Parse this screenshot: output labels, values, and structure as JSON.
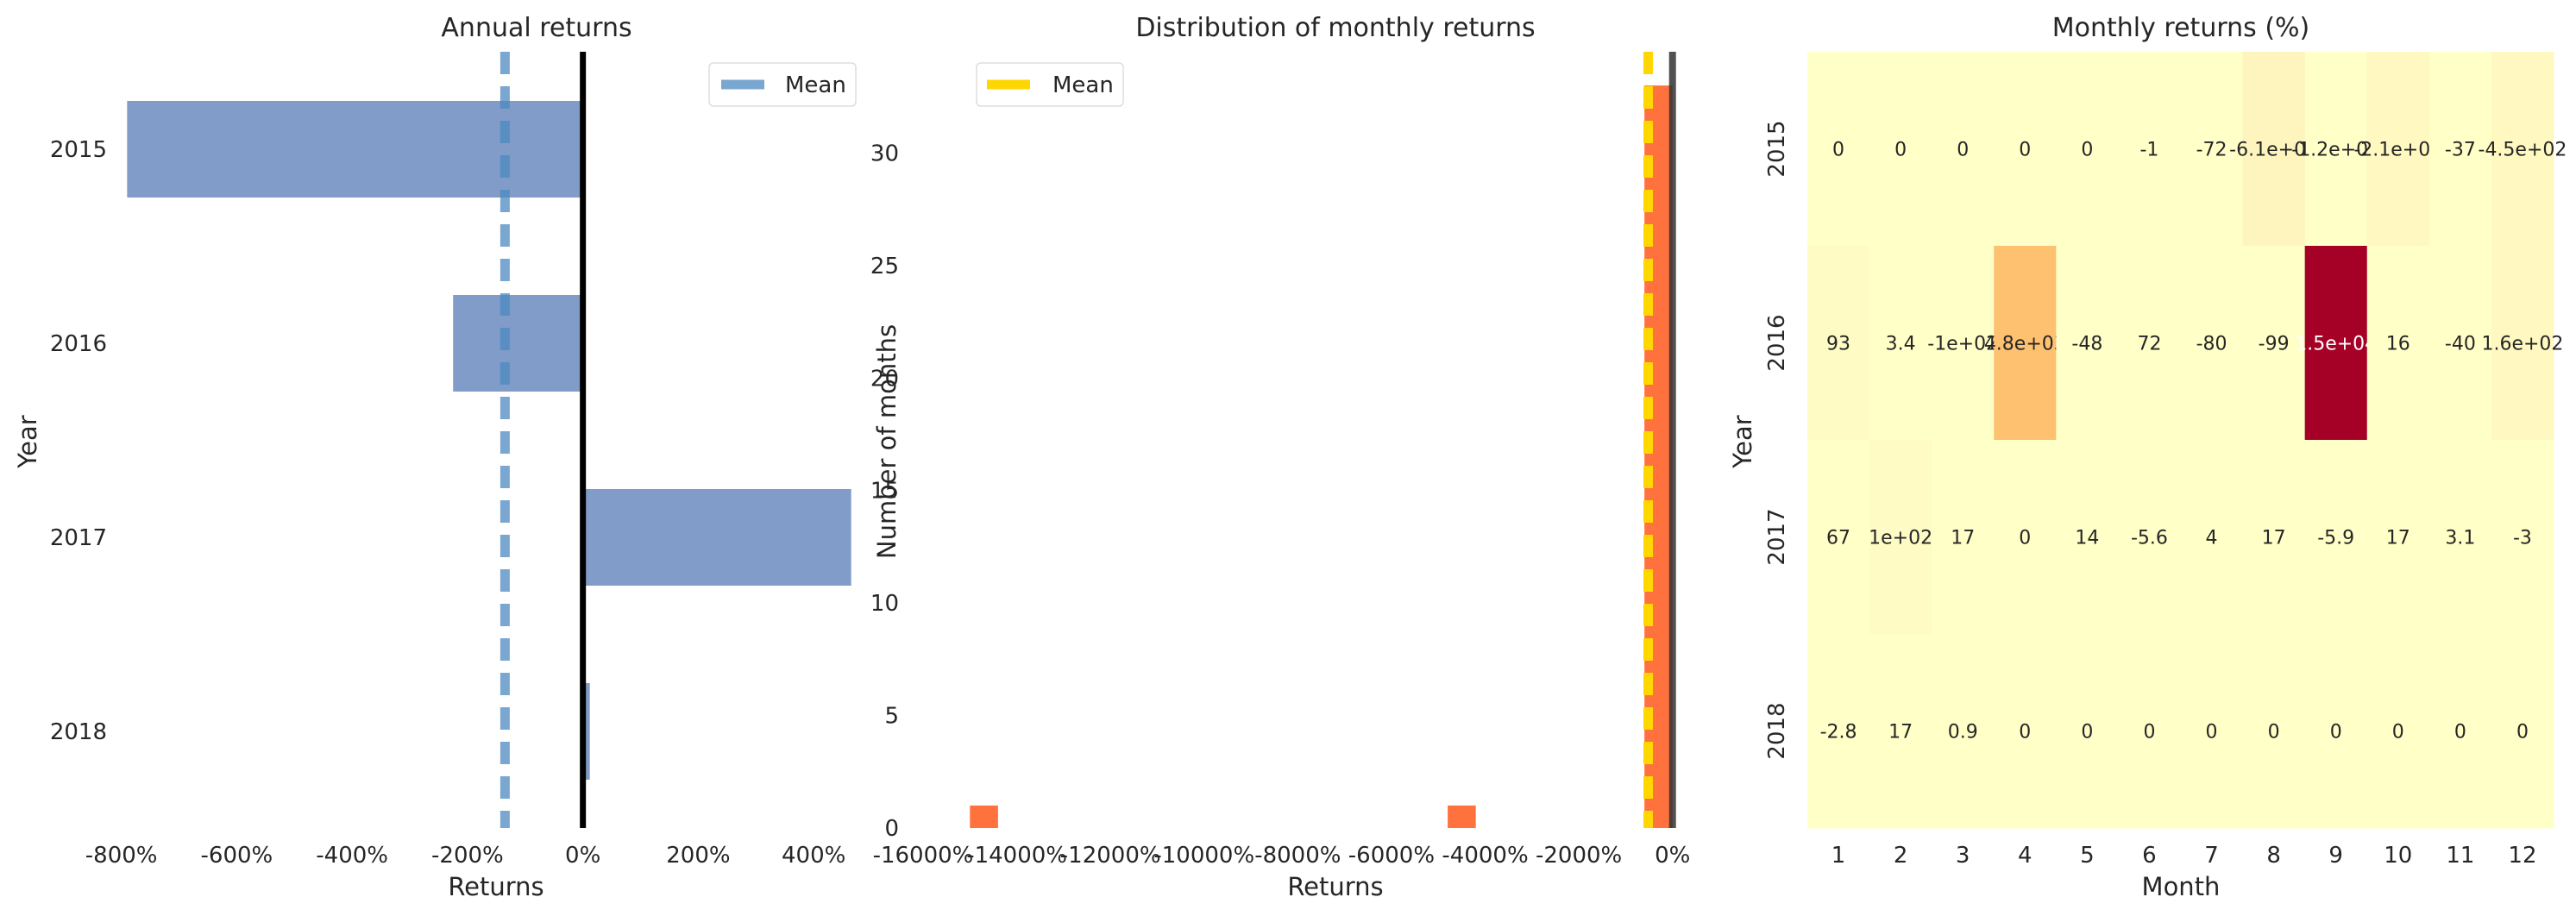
{
  "chart_data": [
    {
      "type": "bar",
      "orientation": "horizontal",
      "title": "Annual returns",
      "xlabel": "Returns",
      "ylabel": "Year",
      "categories": [
        "2015",
        "2016",
        "2017",
        "2018"
      ],
      "values": [
        -790,
        -225,
        465,
        12
      ],
      "unit": "%",
      "xlim": [
        -795,
        470
      ],
      "xticks": [
        "-800%",
        "-600%",
        "-400%",
        "-200%",
        "0%",
        "200%",
        "400%"
      ],
      "mean": -135,
      "legend": [
        "Mean"
      ],
      "legend_position": "top-right",
      "colors": {
        "bar": "#4c72b0",
        "mean_line": "#4c8ac0",
        "zero_line": "#000000"
      },
      "grid": false
    },
    {
      "type": "histogram",
      "title": "Distribution of monthly returns",
      "xlabel": "Returns",
      "ylabel": "Number of months",
      "xlim": [
        -16000,
        300
      ],
      "ylim": [
        0,
        34.5
      ],
      "xticks": [
        "-16000%",
        "-14000%",
        "-12000%",
        "-10000%",
        "-8000%",
        "-6000%",
        "-4000%",
        "-2000%",
        "0%"
      ],
      "yticks": [
        "0",
        "5",
        "10",
        "15",
        "20",
        "25",
        "30"
      ],
      "bins": [
        {
          "x0": -15000,
          "x1": -14400,
          "count": 1
        },
        {
          "x0": -4800,
          "x1": -4200,
          "count": 1
        },
        {
          "x0": -600,
          "x1": 0,
          "count": 33
        }
      ],
      "mean": -520,
      "zero_line": 0,
      "legend": [
        "Mean"
      ],
      "legend_position": "top-left",
      "colors": {
        "bar": "#ff6a33",
        "mean_line": "#ffd700",
        "zero_line": "#333333"
      },
      "grid": false
    },
    {
      "type": "heatmap",
      "title": "Monthly returns (%)",
      "xlabel": "Month",
      "ylabel": "Year",
      "rows": [
        "2015",
        "2016",
        "2017",
        "2018"
      ],
      "columns": [
        "1",
        "2",
        "3",
        "4",
        "5",
        "6",
        "7",
        "8",
        "9",
        "10",
        "11",
        "12"
      ],
      "values": [
        [
          0,
          0,
          0,
          0,
          0,
          -1,
          -72,
          -610,
          -120,
          -210,
          -37,
          -450
        ],
        [
          93,
          3.4,
          -100,
          4800,
          -48,
          72,
          -80,
          -99,
          15000,
          16,
          -40,
          160
        ],
        [
          67,
          100,
          17,
          0,
          14,
          -5.6,
          4,
          17,
          -5.9,
          17,
          3.1,
          -3
        ],
        [
          -2.8,
          17,
          0.9,
          0,
          0,
          0,
          0,
          0,
          0,
          0,
          0,
          0
        ]
      ],
      "labels": [
        [
          "0",
          "0",
          "0",
          "0",
          "0",
          "-1",
          "-72",
          "-6.1e+02",
          "-1.2e+02",
          "-2.1e+02",
          "-37",
          "-4.5e+02"
        ],
        [
          "93",
          "3.4",
          "-1e+02",
          "4.8e+03",
          "-48",
          "72",
          "-80",
          "-99",
          "1.5e+04",
          "16",
          "-40",
          "1.6e+02"
        ],
        [
          "67",
          "1e+02",
          "17",
          "0",
          "14",
          "-5.6",
          "4",
          "17",
          "-5.9",
          "17",
          "3.1",
          "-3"
        ],
        [
          "-2.8",
          "17",
          "0.9",
          "0",
          "0",
          "0",
          "0",
          "0",
          "0",
          "0",
          "0",
          "0"
        ]
      ],
      "colormap": "YlOrRd",
      "colors": {
        "base": "#ffffc8",
        "mid": "#fdc170",
        "high": "#a50026"
      }
    }
  ]
}
